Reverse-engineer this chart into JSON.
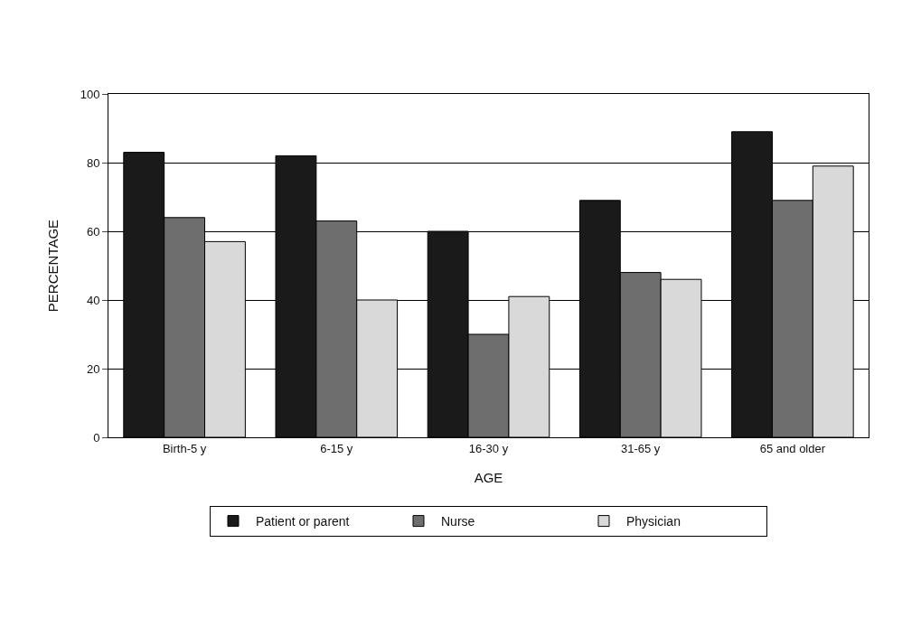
{
  "chart_data": {
    "type": "bar",
    "xlabel": "AGE",
    "ylabel": "PERCENTAGE",
    "categories": [
      "Birth-5 y",
      "6-15 y",
      "16-30 y",
      "31-65 y",
      "65 and older"
    ],
    "series": [
      {
        "name": "Patient or parent",
        "color": "#1a1a1a",
        "values": [
          83,
          82,
          60,
          69,
          89
        ]
      },
      {
        "name": "Nurse",
        "color": "#6e6e6e",
        "values": [
          64,
          63,
          30,
          48,
          69
        ]
      },
      {
        "name": "Physician",
        "color": "#d9d9d9",
        "values": [
          57,
          40,
          41,
          46,
          79
        ]
      }
    ],
    "ylim": [
      0,
      100
    ],
    "yticks": [
      0,
      20,
      40,
      60,
      80,
      100
    ],
    "grid": "y",
    "legend": "bottom"
  }
}
